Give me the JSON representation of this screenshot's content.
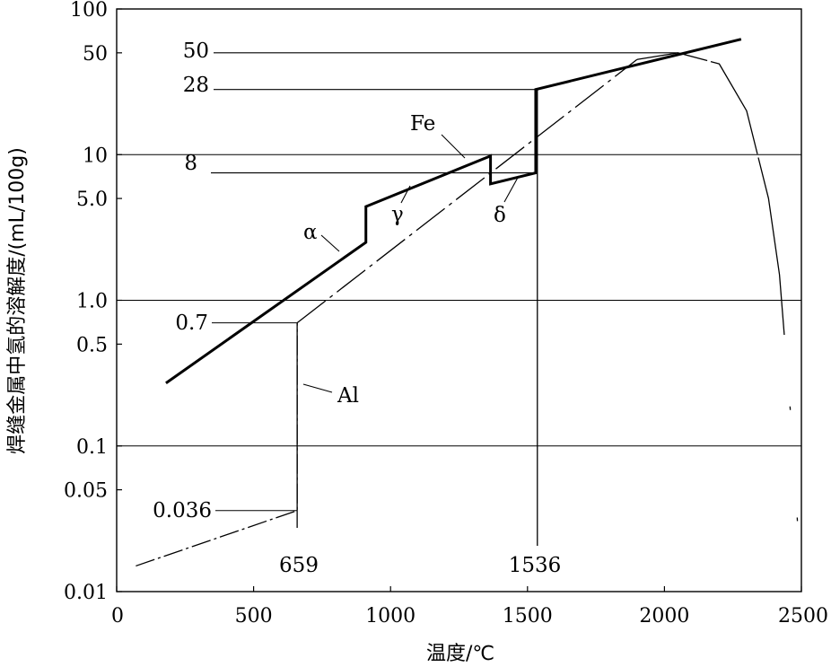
{
  "chart_data": {
    "type": "line",
    "xlabel": "温度/℃",
    "ylabel": "焊缝金属中氢的溶解度/(mL/100g)",
    "xlim": [
      0,
      2500
    ],
    "ylim": [
      0.01,
      100
    ],
    "yscale": "log",
    "grid": "horizontal",
    "x_ticks": [
      {
        "value": 0,
        "label": "0"
      },
      {
        "value": 500,
        "label": "500"
      },
      {
        "value": 1000,
        "label": "1000"
      },
      {
        "value": 1500,
        "label": "1500"
      },
      {
        "value": 2000,
        "label": "2000"
      },
      {
        "value": 2500,
        "label": "2500"
      }
    ],
    "y_ticks": [
      {
        "value": 0.01,
        "label": "0.01"
      },
      {
        "value": 0.05,
        "label": "0.05"
      },
      {
        "value": 0.1,
        "label": "0.1"
      },
      {
        "value": 0.5,
        "label": "0.5"
      },
      {
        "value": 1,
        "label": "1.0"
      },
      {
        "value": 5,
        "label": "5.0"
      },
      {
        "value": 10,
        "label": "10"
      },
      {
        "value": 50,
        "label": "50"
      },
      {
        "value": 100,
        "label": "100"
      }
    ],
    "hgrid_values": [
      0.1,
      1,
      10,
      100
    ],
    "reference_lines": [
      {
        "kind": "h",
        "value": 50,
        "x_from": 0,
        "x_to": 2050,
        "label": "50"
      },
      {
        "kind": "h",
        "value": 28,
        "x_from": 0,
        "x_to": 1530,
        "label": "28"
      },
      {
        "kind": "h",
        "value": 7.5,
        "x_from": 0,
        "x_to": 1530,
        "label": "8"
      },
      {
        "kind": "h",
        "value": 0.7,
        "x_from": 0,
        "x_to": 659,
        "label": "0.7"
      },
      {
        "kind": "h",
        "value": 0.036,
        "x_from": 0,
        "x_to": 659,
        "label": "0.036"
      },
      {
        "kind": "v",
        "value": 659,
        "y_from": 0.01,
        "y_to": 0.7,
        "label": "659"
      },
      {
        "kind": "v",
        "value": 1536,
        "y_from": 0.01,
        "y_to": 28,
        "label": "1536"
      }
    ],
    "series": [
      {
        "name": "Fe",
        "style": "thick",
        "points": [
          [
            180,
            0.27
          ],
          [
            910,
            2.5
          ],
          [
            910,
            4.4
          ],
          [
            1365,
            9.8
          ],
          [
            1365,
            6.3
          ],
          [
            1530,
            7.5
          ],
          [
            1530,
            28
          ],
          [
            2280,
            62
          ]
        ]
      },
      {
        "name": "Al",
        "style": "thin",
        "points": [
          [
            70,
            0.015
          ],
          [
            659,
            0.036
          ],
          [
            659,
            0.7
          ],
          [
            1900,
            45
          ],
          [
            2050,
            50
          ],
          [
            2200,
            42
          ],
          [
            2300,
            20
          ],
          [
            2380,
            5
          ],
          [
            2420,
            1.5
          ],
          [
            2470,
            0.1
          ],
          [
            2500,
            0.01
          ]
        ]
      }
    ],
    "annotations": [
      {
        "text": "α",
        "near": [
          800,
          2.1
        ]
      },
      {
        "text": "γ",
        "near": [
          1040,
          5.5
        ]
      },
      {
        "text": "Fe",
        "near": [
          1250,
          8.5
        ]
      },
      {
        "text": "δ",
        "near": [
          1440,
          6.2
        ]
      },
      {
        "text": "Al",
        "near": [
          670,
          0.2
        ]
      }
    ]
  },
  "labels": {
    "alpha": "α",
    "gamma": "γ",
    "delta": "δ",
    "fe": "Fe",
    "al": "Al"
  }
}
